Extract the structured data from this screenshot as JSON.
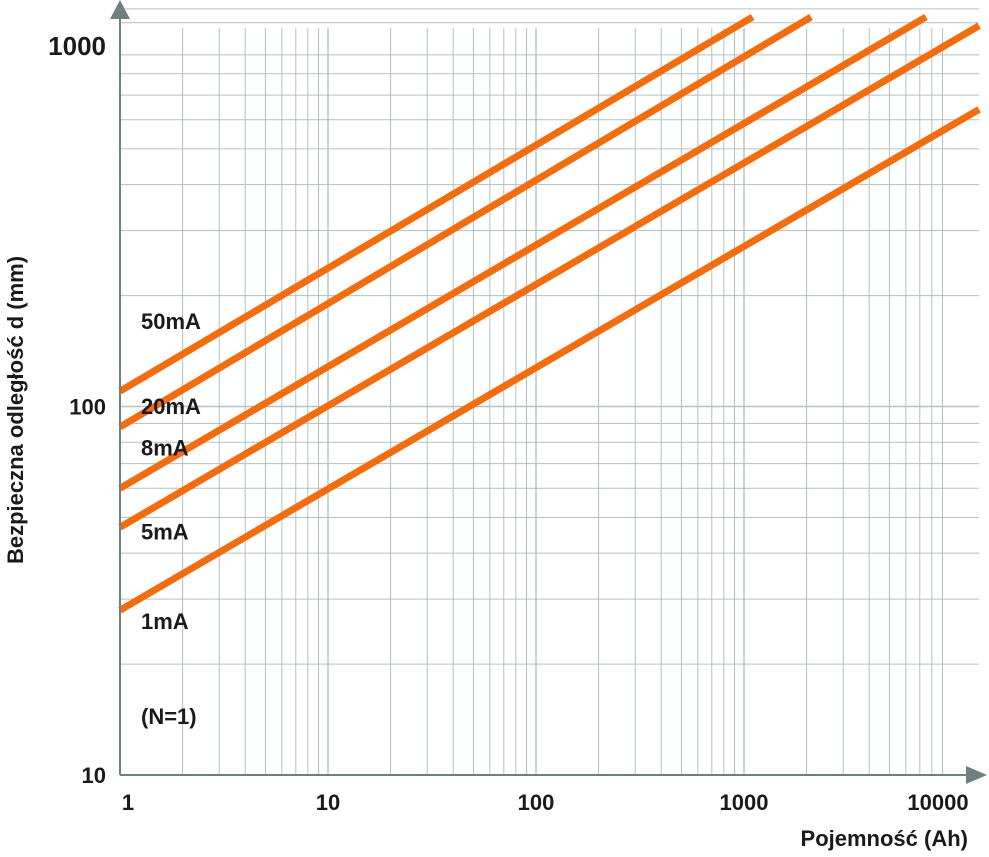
{
  "chart_data": {
    "type": "line",
    "title": "",
    "xlabel": "Pojemność (Ah)",
    "ylabel": "Bezpieczna odległość d (mm)",
    "xscale": "log",
    "yscale": "log",
    "xlim": [
      1,
      10000
    ],
    "ylim": [
      10,
      1000
    ],
    "grid": true,
    "x_ticks": [
      "1",
      "10",
      "100",
      "1000",
      "10000"
    ],
    "y_ticks": [
      "10",
      "100",
      "1000"
    ],
    "note": "(N=1)",
    "colors": {
      "series": "#f26d10",
      "grid": "#b3c1c1",
      "axis": "#6f8080"
    },
    "series": [
      {
        "name": "50mA",
        "x": [
          1,
          1100
        ],
        "y": [
          110,
          1140
        ]
      },
      {
        "name": "20mA",
        "x": [
          1,
          2100
        ],
        "y": [
          88,
          1140
        ]
      },
      {
        "name": "8mA",
        "x": [
          1,
          7500
        ],
        "y": [
          60,
          1140
        ]
      },
      {
        "name": "5mA",
        "x": [
          1,
          13500
        ],
        "y": [
          47,
          1080
        ]
      },
      {
        "name": "1mA",
        "x": [
          1,
          13500
        ],
        "y": [
          28,
          640
        ]
      }
    ]
  }
}
